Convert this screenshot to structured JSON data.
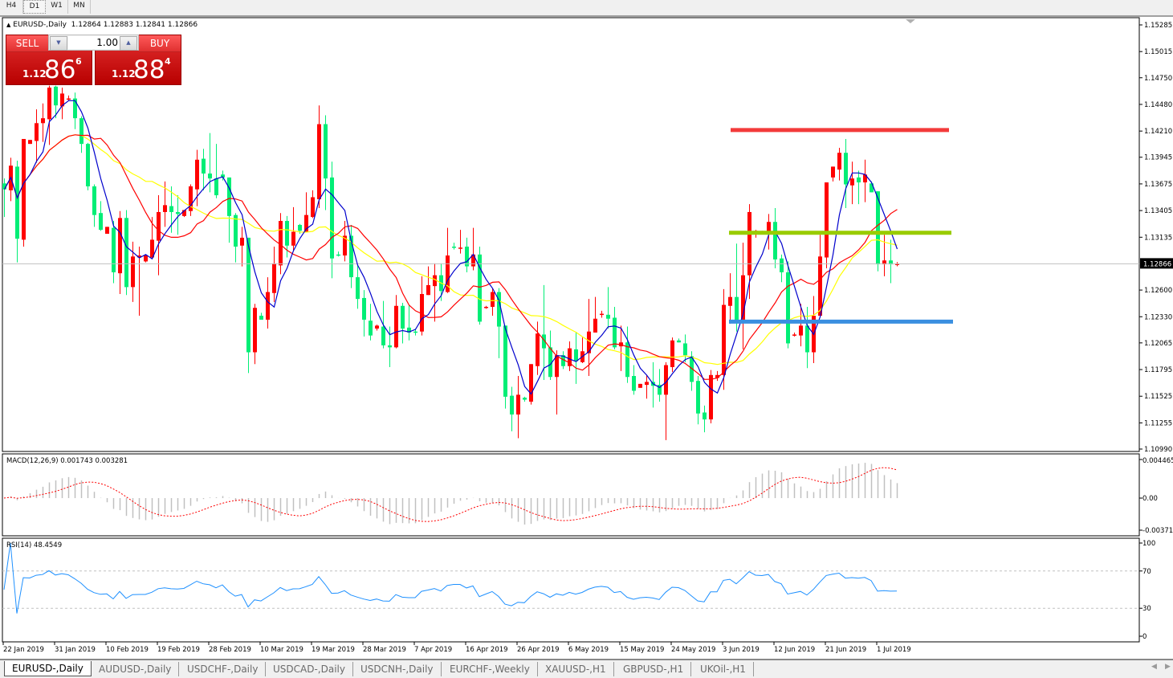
{
  "timeframes": {
    "items": [
      "H4",
      "D1",
      "W1",
      "MN"
    ],
    "active": "D1"
  },
  "chart_header": {
    "symbol": "EURUSD-,Daily",
    "ohlc": "1.12864 1.12883 1.12841 1.12866"
  },
  "one_click_trading": {
    "sell_label": "SELL",
    "buy_label": "BUY",
    "lot": "1.00",
    "sell_price": {
      "big_figure": "1.12",
      "pips": "86",
      "fraction": "6"
    },
    "buy_price": {
      "big_figure": "1.12",
      "pips": "88",
      "fraction": "4"
    },
    "color": "#c41010"
  },
  "colors": {
    "bull": "#ff0000",
    "bear": "#00ee76",
    "ma_fast": "#0000cc",
    "ma_mid": "#ff0000",
    "ma_slow": "#ffff00",
    "macd_hist": "#c0c0c0",
    "macd_signal": "#ff0000",
    "rsi": "#1e90ff"
  },
  "chart_data": [
    {
      "type": "candlestick",
      "title": "EURUSD-,Daily",
      "ylim": [
        1.1099,
        1.15285
      ],
      "y_ticks": [
        "1.15285",
        "1.15015",
        "1.14750",
        "1.14480",
        "1.14210",
        "1.13945",
        "1.13675",
        "1.13405",
        "1.13135",
        "1.12866",
        "1.12600",
        "1.12330",
        "1.12065",
        "1.11795",
        "1.11525",
        "1.11255",
        "1.10990"
      ],
      "current_price": "1.12866",
      "x_labels": [
        "22 Jan 2019",
        "31 Jan 2019",
        "10 Feb 2019",
        "19 Feb 2019",
        "28 Feb 2019",
        "10 Mar 2019",
        "19 Mar 2019",
        "28 Mar 2019",
        "7 Apr 2019",
        "16 Apr 2019",
        "26 Apr 2019",
        "6 May 2019",
        "15 May 2019",
        "24 May 2019",
        "3 Jun 2019",
        "12 Jun 2019",
        "21 Jun 2019",
        "1 Jul 2019"
      ],
      "ohlc": [
        [
          1.1368,
          1.1373,
          1.1334,
          1.1362
        ],
        [
          1.1361,
          1.1394,
          1.135,
          1.1386
        ],
        [
          1.1385,
          1.1391,
          1.1288,
          1.1312
        ],
        [
          1.1311,
          1.1413,
          1.1304,
          1.1413
        ],
        [
          1.1408,
          1.1412,
          1.1408,
          1.1412
        ],
        [
          1.1411,
          1.1443,
          1.1389,
          1.1429
        ],
        [
          1.1429,
          1.1449,
          1.141,
          1.1434
        ],
        [
          1.1433,
          1.1467,
          1.1407,
          1.1465
        ],
        [
          1.1466,
          1.1467,
          1.1434,
          1.1447
        ],
        [
          1.1446,
          1.1465,
          1.1433,
          1.1459
        ],
        [
          1.1453,
          1.1457,
          1.1452,
          1.1454
        ],
        [
          1.1454,
          1.146,
          1.1423,
          1.1434
        ],
        [
          1.1434,
          1.1436,
          1.1399,
          1.1408
        ],
        [
          1.1408,
          1.1409,
          1.1361,
          1.1365
        ],
        [
          1.1365,
          1.1367,
          1.1324,
          1.1336
        ],
        [
          1.1338,
          1.135,
          1.132,
          1.1321
        ],
        [
          1.1317,
          1.1324,
          1.1317,
          1.1324
        ],
        [
          1.1323,
          1.133,
          1.1267,
          1.1278
        ],
        [
          1.1277,
          1.134,
          1.1256,
          1.1333
        ],
        [
          1.1333,
          1.1341,
          1.1255,
          1.1263
        ],
        [
          1.1263,
          1.1309,
          1.1248,
          1.1294
        ],
        [
          1.1293,
          1.1304,
          1.1234,
          1.1295
        ],
        [
          1.1289,
          1.1295,
          1.1288,
          1.1295
        ],
        [
          1.1293,
          1.1334,
          1.1292,
          1.1311
        ],
        [
          1.131,
          1.1356,
          1.1275,
          1.1339
        ],
        [
          1.1339,
          1.137,
          1.1324,
          1.1346
        ],
        [
          1.1345,
          1.1365,
          1.1318,
          1.1339
        ],
        [
          1.1339,
          1.1356,
          1.1316,
          1.1337
        ],
        [
          1.1335,
          1.1341,
          1.1334,
          1.1341
        ],
        [
          1.134,
          1.1367,
          1.1335,
          1.1365
        ],
        [
          1.1362,
          1.1402,
          1.1345,
          1.1392
        ],
        [
          1.1393,
          1.1403,
          1.1361,
          1.1378
        ],
        [
          1.1378,
          1.1419,
          1.1359,
          1.1373
        ],
        [
          1.1373,
          1.1408,
          1.1353,
          1.1356
        ],
        [
          1.1377,
          1.1381,
          1.1371,
          1.1374
        ],
        [
          1.1374,
          1.1374,
          1.1308,
          1.1335
        ],
        [
          1.1336,
          1.1338,
          1.1288,
          1.1304
        ],
        [
          1.1305,
          1.1324,
          1.1284,
          1.1313
        ],
        [
          1.1313,
          1.1313,
          1.1176,
          1.1197
        ],
        [
          1.1197,
          1.1246,
          1.1185,
          1.1242
        ],
        [
          1.1234,
          1.1237,
          1.123,
          1.123
        ],
        [
          1.123,
          1.1273,
          1.1221,
          1.1258
        ],
        [
          1.1257,
          1.1304,
          1.1248,
          1.1287
        ],
        [
          1.1285,
          1.1338,
          1.1276,
          1.133
        ],
        [
          1.133,
          1.1335,
          1.1293,
          1.1305
        ],
        [
          1.1305,
          1.1344,
          1.1299,
          1.1319
        ],
        [
          1.1326,
          1.1327,
          1.1317,
          1.132
        ],
        [
          1.1319,
          1.1359,
          1.1319,
          1.1336
        ],
        [
          1.1334,
          1.1361,
          1.1333,
          1.1354
        ],
        [
          1.1352,
          1.1447,
          1.1343,
          1.1428
        ],
        [
          1.1428,
          1.1437,
          1.1341,
          1.1373
        ],
        [
          1.1374,
          1.139,
          1.1272,
          1.1292
        ],
        [
          1.1296,
          1.1299,
          1.1294,
          1.1295
        ],
        [
          1.1295,
          1.133,
          1.1289,
          1.1315
        ],
        [
          1.1315,
          1.1326,
          1.1262,
          1.1273
        ],
        [
          1.1273,
          1.1285,
          1.1241,
          1.1251
        ],
        [
          1.1252,
          1.126,
          1.1213,
          1.123
        ],
        [
          1.1229,
          1.1246,
          1.1209,
          1.1214
        ],
        [
          1.1221,
          1.1225,
          1.1219,
          1.1224
        ],
        [
          1.1223,
          1.1249,
          1.1201,
          1.1204
        ],
        [
          1.1204,
          1.1223,
          1.1182,
          1.1202
        ],
        [
          1.1202,
          1.1255,
          1.1201,
          1.1244
        ],
        [
          1.1244,
          1.1247,
          1.1206,
          1.1221
        ],
        [
          1.1222,
          1.1245,
          1.1209,
          1.1217
        ],
        [
          1.1218,
          1.1221,
          1.1214,
          1.1217
        ],
        [
          1.1218,
          1.1274,
          1.1214,
          1.1256
        ],
        [
          1.1255,
          1.1284,
          1.1255,
          1.1265
        ],
        [
          1.1264,
          1.1287,
          1.1228,
          1.1275
        ],
        [
          1.1275,
          1.1287,
          1.1249,
          1.1259
        ],
        [
          1.1258,
          1.1323,
          1.1257,
          1.1295
        ],
        [
          1.1304,
          1.1308,
          1.1301,
          1.1303
        ],
        [
          1.1302,
          1.1321,
          1.1297,
          1.1303
        ],
        [
          1.1304,
          1.1313,
          1.1278,
          1.1284
        ],
        [
          1.1284,
          1.1323,
          1.128,
          1.1296
        ],
        [
          1.1296,
          1.1304,
          1.1225,
          1.1228
        ],
        [
          1.1242,
          1.1244,
          1.1241,
          1.1243
        ],
        [
          1.1243,
          1.1262,
          1.1234,
          1.1258
        ],
        [
          1.1258,
          1.1262,
          1.1191,
          1.1223
        ],
        [
          1.1224,
          1.1224,
          1.114,
          1.1152
        ],
        [
          1.1153,
          1.1162,
          1.1117,
          1.1134
        ],
        [
          1.1134,
          1.1173,
          1.111,
          1.1154
        ],
        [
          1.1151,
          1.1152,
          1.1147,
          1.1149
        ],
        [
          1.1147,
          1.1185,
          1.1144,
          1.1185
        ],
        [
          1.1183,
          1.1228,
          1.1174,
          1.1216
        ],
        [
          1.1215,
          1.1265,
          1.1169,
          1.1201
        ],
        [
          1.1202,
          1.1219,
          1.1169,
          1.1172
        ],
        [
          1.1172,
          1.1199,
          1.1134,
          1.1194
        ],
        [
          1.1194,
          1.1198,
          1.118,
          1.1183
        ],
        [
          1.1183,
          1.1208,
          1.1178,
          1.1201
        ],
        [
          1.12,
          1.1217,
          1.1165,
          1.1188
        ],
        [
          1.1187,
          1.1212,
          1.1186,
          1.1198
        ],
        [
          1.1196,
          1.1251,
          1.1173,
          1.1218
        ],
        [
          1.1217,
          1.1253,
          1.1217,
          1.1231
        ],
        [
          1.1235,
          1.1239,
          1.1232,
          1.1236
        ],
        [
          1.1235,
          1.1263,
          1.1221,
          1.1231
        ],
        [
          1.1232,
          1.1243,
          1.12,
          1.1202
        ],
        [
          1.1203,
          1.1224,
          1.1178,
          1.1207
        ],
        [
          1.1207,
          1.1223,
          1.1166,
          1.1172
        ],
        [
          1.1173,
          1.1184,
          1.1154,
          1.1158
        ],
        [
          1.1161,
          1.1165,
          1.1161,
          1.1165
        ],
        [
          1.1164,
          1.1174,
          1.115,
          1.1167
        ],
        [
          1.1167,
          1.1187,
          1.1141,
          1.1163
        ],
        [
          1.1164,
          1.118,
          1.1147,
          1.1154
        ],
        [
          1.1154,
          1.1187,
          1.1108,
          1.1184
        ],
        [
          1.1182,
          1.1212,
          1.1177,
          1.1209
        ],
        [
          1.1209,
          1.1211,
          1.1207,
          1.1207
        ],
        [
          1.1206,
          1.1215,
          1.1187,
          1.1194
        ],
        [
          1.1193,
          1.1198,
          1.1158,
          1.1167
        ],
        [
          1.1168,
          1.1173,
          1.1124,
          1.1135
        ],
        [
          1.1136,
          1.1143,
          1.1116,
          1.1129
        ],
        [
          1.1129,
          1.1179,
          1.1125,
          1.1174
        ],
        [
          1.1171,
          1.1178,
          1.1168,
          1.1174
        ],
        [
          1.1174,
          1.1261,
          1.1159,
          1.1245
        ],
        [
          1.1244,
          1.1277,
          1.1226,
          1.1253
        ],
        [
          1.1253,
          1.1307,
          1.1218,
          1.123
        ],
        [
          1.123,
          1.1308,
          1.12,
          1.1275
        ],
        [
          1.1275,
          1.1347,
          1.1251,
          1.1339
        ],
        [
          1.1319,
          1.1321,
          1.1313,
          1.132
        ],
        [
          1.1318,
          1.132,
          1.1317,
          1.1318
        ],
        [
          1.1319,
          1.1337,
          1.1301,
          1.1329
        ],
        [
          1.1329,
          1.1343,
          1.1282,
          1.1291
        ],
        [
          1.1292,
          1.1296,
          1.1268,
          1.1278
        ],
        [
          1.1278,
          1.1289,
          1.1201,
          1.1206
        ],
        [
          1.1214,
          1.1217,
          1.1213,
          1.1215
        ],
        [
          1.1214,
          1.1246,
          1.1203,
          1.1224
        ],
        [
          1.1224,
          1.1243,
          1.1181,
          1.1197
        ],
        [
          1.1197,
          1.1254,
          1.1186,
          1.1234
        ],
        [
          1.1234,
          1.1316,
          1.1233,
          1.1294
        ],
        [
          1.1293,
          1.1369,
          1.1282,
          1.1369
        ],
        [
          1.1374,
          1.1385,
          1.137,
          1.1385
        ],
        [
          1.1382,
          1.1404,
          1.1371,
          1.1399
        ],
        [
          1.1399,
          1.1413,
          1.1343,
          1.1367
        ],
        [
          1.1366,
          1.139,
          1.1347,
          1.1373
        ],
        [
          1.1374,
          1.1381,
          1.1347,
          1.1369
        ],
        [
          1.1369,
          1.1392,
          1.1349,
          1.1377
        ],
        [
          1.1368,
          1.137,
          1.1359,
          1.1359
        ],
        [
          1.136,
          1.136,
          1.1279,
          1.1286
        ],
        [
          1.1286,
          1.1316,
          1.1274,
          1.129
        ],
        [
          1.129,
          1.1311,
          1.1267,
          1.1286
        ],
        [
          1.12864,
          1.12883,
          1.12841,
          1.12866
        ]
      ],
      "horizontal_lines": [
        {
          "level": 1.1422,
          "color": "#f33a3a"
        },
        {
          "level": 1.1318,
          "color": "#99cc00"
        },
        {
          "level": 1.1228,
          "color": "#3a8fe0"
        }
      ]
    },
    {
      "type": "bar",
      "title": "MACD(12,26,9) 0.001743 0.003281",
      "y_ticks": [
        "0.004465",
        "0.00",
        "-0.003715"
      ],
      "ylim": [
        -0.003715,
        0.004465
      ]
    },
    {
      "type": "line",
      "title": "RSI(14) 48.4549",
      "y_ticks": [
        "100",
        "70",
        "30",
        "0"
      ],
      "ylim": [
        0,
        100
      ],
      "levels": [
        70,
        30
      ]
    }
  ],
  "symbol_tabs": {
    "items": [
      "EURUSD-,Daily",
      "AUDUSD-,Daily",
      "USDCHF-,Daily",
      "USDCAD-,Daily",
      "USDCNH-,Daily",
      "EURCHF-,Weekly",
      "XAUUSD-,H1",
      "GBPUSD-,H1",
      "UKOil-,H1"
    ],
    "active": "EURUSD-,Daily"
  }
}
